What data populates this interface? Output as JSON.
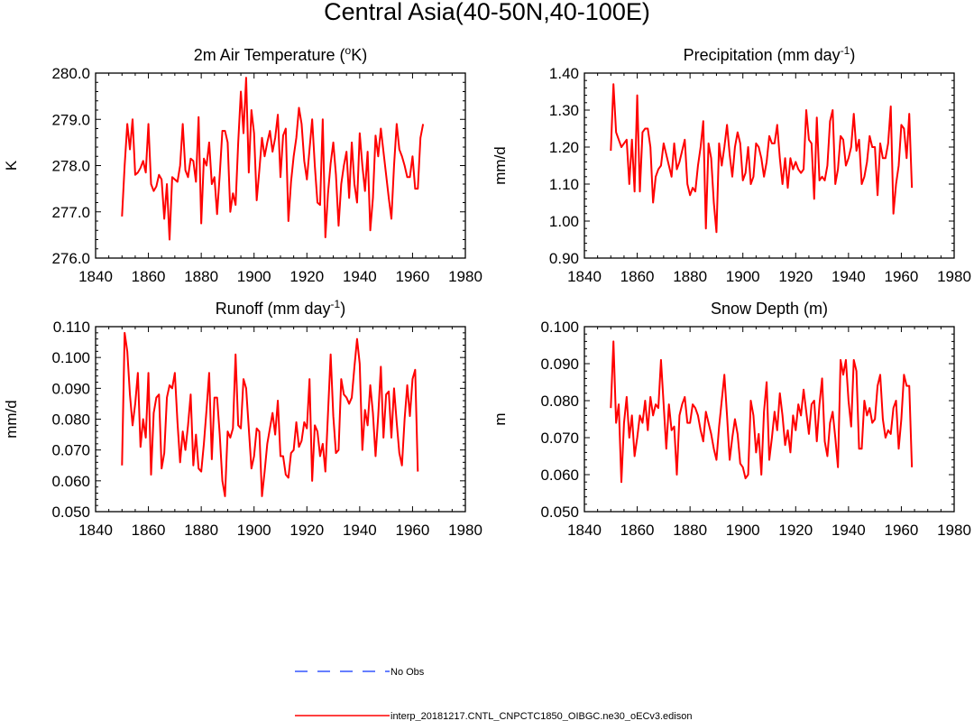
{
  "figure": {
    "title": "Central Asia(40-50N,40-100E)"
  },
  "chart_data": [
    {
      "id": "temperature",
      "type": "line",
      "title": "2m Air Temperature (",
      "title_sup": "o",
      "title_post": "K)",
      "ylabel": "K",
      "xlim": [
        1840,
        1980
      ],
      "ylim": [
        276.0,
        280.0
      ],
      "xticks": [
        1840,
        1860,
        1880,
        1900,
        1920,
        1940,
        1960,
        1980
      ],
      "yticks": [
        "276.0",
        "277.0",
        "278.0",
        "279.0",
        "280.0"
      ],
      "x_start": 1850,
      "series": [
        {
          "name": "interp_20181217.CNTL_CNPCTC1850_OIBGC.ne30_oECv3.edison",
          "color": "#ff0000",
          "values": [
            276.9,
            278.0,
            278.9,
            278.35,
            279.0,
            277.8,
            277.85,
            277.95,
            278.1,
            277.85,
            278.9,
            277.6,
            277.45,
            277.55,
            277.8,
            277.7,
            276.85,
            277.6,
            276.4,
            277.75,
            277.7,
            277.65,
            278.0,
            278.9,
            277.9,
            277.75,
            278.15,
            278.1,
            277.65,
            279.05,
            276.75,
            278.15,
            278.0,
            278.5,
            277.6,
            277.75,
            276.95,
            277.8,
            278.75,
            278.75,
            278.5,
            277.0,
            277.4,
            277.15,
            278.5,
            279.6,
            278.7,
            279.9,
            277.85,
            279.2,
            278.7,
            277.25,
            277.9,
            278.6,
            278.2,
            278.5,
            278.75,
            278.3,
            278.6,
            279.1,
            277.75,
            278.65,
            278.8,
            276.8,
            277.65,
            278.2,
            278.6,
            279.25,
            278.9,
            278.1,
            277.7,
            278.35,
            279.0,
            278.0,
            277.2,
            277.15,
            279.0,
            276.45,
            277.4,
            278.05,
            278.5,
            277.8,
            276.7,
            277.6,
            278.0,
            278.3,
            277.3,
            278.5,
            277.6,
            277.2,
            278.7,
            278.0,
            277.45,
            278.3,
            276.6,
            277.3,
            278.65,
            278.2,
            278.8,
            278.3,
            277.8,
            277.3,
            276.85,
            278.0,
            278.9,
            278.35,
            278.2,
            278.0,
            277.75,
            277.75,
            278.2,
            277.5,
            277.5,
            278.6,
            278.9
          ]
        }
      ]
    },
    {
      "id": "precipitation",
      "type": "line",
      "title": "Precipitation (mm day",
      "title_sup": "-1",
      "title_post": ")",
      "ylabel": "mm/d",
      "xlim": [
        1840,
        1980
      ],
      "ylim": [
        0.9,
        1.4
      ],
      "xticks": [
        1840,
        1860,
        1880,
        1900,
        1920,
        1940,
        1960,
        1980
      ],
      "yticks": [
        "0.90",
        "1.00",
        "1.10",
        "1.20",
        "1.30",
        "1.40"
      ],
      "x_start": 1850,
      "series": [
        {
          "name": "interp_20181217.CNTL_CNPCTC1850_OIBGC.ne30_oECv3.edison",
          "color": "#ff0000",
          "values": [
            1.19,
            1.37,
            1.24,
            1.22,
            1.2,
            1.21,
            1.22,
            1.1,
            1.22,
            1.08,
            1.34,
            1.08,
            1.24,
            1.25,
            1.25,
            1.2,
            1.05,
            1.12,
            1.14,
            1.15,
            1.21,
            1.18,
            1.15,
            1.12,
            1.21,
            1.14,
            1.16,
            1.19,
            1.22,
            1.1,
            1.07,
            1.09,
            1.08,
            1.15,
            1.2,
            1.27,
            0.98,
            1.21,
            1.17,
            1.05,
            0.97,
            1.21,
            1.15,
            1.2,
            1.26,
            1.18,
            1.12,
            1.2,
            1.24,
            1.21,
            1.11,
            1.13,
            1.2,
            1.1,
            1.12,
            1.21,
            1.2,
            1.17,
            1.12,
            1.16,
            1.23,
            1.21,
            1.21,
            1.26,
            1.17,
            1.1,
            1.17,
            1.09,
            1.17,
            1.14,
            1.16,
            1.14,
            1.13,
            1.14,
            1.3,
            1.22,
            1.21,
            1.06,
            1.28,
            1.11,
            1.12,
            1.11,
            1.15,
            1.27,
            1.3,
            1.1,
            1.14,
            1.23,
            1.22,
            1.15,
            1.17,
            1.2,
            1.29,
            1.19,
            1.22,
            1.1,
            1.12,
            1.16,
            1.23,
            1.2,
            1.2,
            1.07,
            1.21,
            1.17,
            1.17,
            1.21,
            1.31,
            1.02,
            1.1,
            1.15,
            1.26,
            1.25,
            1.17,
            1.29,
            1.09
          ]
        }
      ]
    },
    {
      "id": "runoff",
      "type": "line",
      "title": "Runoff (mm day",
      "title_sup": "-1",
      "title_post": ")",
      "ylabel": "mm/d",
      "xlim": [
        1840,
        1980
      ],
      "ylim": [
        0.05,
        0.11
      ],
      "xticks": [
        1840,
        1860,
        1880,
        1900,
        1920,
        1940,
        1960,
        1980
      ],
      "yticks": [
        "0.050",
        "0.060",
        "0.070",
        "0.080",
        "0.090",
        "0.100",
        "0.110"
      ],
      "x_start": 1850,
      "series": [
        {
          "name": "interp_20181217.CNTL_CNPCTC1850_OIBGC.ne30_oECv3.edison",
          "color": "#ff0000",
          "values": [
            0.065,
            0.108,
            0.102,
            0.088,
            0.078,
            0.085,
            0.095,
            0.071,
            0.08,
            0.074,
            0.095,
            0.062,
            0.082,
            0.087,
            0.088,
            0.064,
            0.069,
            0.087,
            0.091,
            0.09,
            0.095,
            0.079,
            0.066,
            0.076,
            0.07,
            0.078,
            0.088,
            0.065,
            0.075,
            0.064,
            0.063,
            0.072,
            0.083,
            0.095,
            0.067,
            0.087,
            0.087,
            0.075,
            0.06,
            0.055,
            0.076,
            0.074,
            0.077,
            0.101,
            0.078,
            0.077,
            0.093,
            0.09,
            0.077,
            0.064,
            0.068,
            0.077,
            0.076,
            0.055,
            0.063,
            0.072,
            0.077,
            0.082,
            0.075,
            0.086,
            0.068,
            0.068,
            0.062,
            0.061,
            0.069,
            0.07,
            0.079,
            0.071,
            0.073,
            0.079,
            0.077,
            0.093,
            0.06,
            0.078,
            0.076,
            0.068,
            0.072,
            0.063,
            0.082,
            0.101,
            0.081,
            0.069,
            0.07,
            0.093,
            0.088,
            0.087,
            0.085,
            0.087,
            0.097,
            0.106,
            0.098,
            0.07,
            0.083,
            0.078,
            0.091,
            0.082,
            0.068,
            0.081,
            0.097,
            0.074,
            0.088,
            0.089,
            0.074,
            0.09,
            0.079,
            0.069,
            0.065,
            0.08,
            0.091,
            0.081,
            0.093,
            0.096,
            0.063
          ]
        }
      ]
    },
    {
      "id": "snow-depth",
      "type": "line",
      "title": "Snow Depth (m)",
      "title_sup": "",
      "title_post": "",
      "ylabel": "m",
      "xlim": [
        1840,
        1980
      ],
      "ylim": [
        0.05,
        0.1
      ],
      "xticks": [
        1840,
        1860,
        1880,
        1900,
        1920,
        1940,
        1960,
        1980
      ],
      "yticks": [
        "0.050",
        "0.060",
        "0.070",
        "0.080",
        "0.090",
        "0.100"
      ],
      "x_start": 1850,
      "series": [
        {
          "name": "interp_20181217.CNTL_CNPCTC1850_OIBGC.ne30_oECv3.edison",
          "color": "#ff0000",
          "values": [
            0.078,
            0.096,
            0.074,
            0.079,
            0.058,
            0.074,
            0.081,
            0.07,
            0.076,
            0.065,
            0.07,
            0.076,
            0.074,
            0.08,
            0.072,
            0.081,
            0.076,
            0.079,
            0.078,
            0.091,
            0.079,
            0.067,
            0.079,
            0.072,
            0.073,
            0.06,
            0.076,
            0.079,
            0.081,
            0.074,
            0.074,
            0.079,
            0.078,
            0.076,
            0.072,
            0.069,
            0.077,
            0.074,
            0.071,
            0.067,
            0.064,
            0.073,
            0.08,
            0.087,
            0.076,
            0.064,
            0.07,
            0.075,
            0.071,
            0.063,
            0.062,
            0.059,
            0.06,
            0.08,
            0.076,
            0.066,
            0.071,
            0.06,
            0.077,
            0.085,
            0.064,
            0.07,
            0.077,
            0.072,
            0.082,
            0.076,
            0.068,
            0.072,
            0.066,
            0.076,
            0.072,
            0.079,
            0.076,
            0.083,
            0.077,
            0.071,
            0.079,
            0.08,
            0.069,
            0.079,
            0.086,
            0.069,
            0.065,
            0.074,
            0.077,
            0.07,
            0.062,
            0.091,
            0.087,
            0.091,
            0.08,
            0.073,
            0.091,
            0.088,
            0.067,
            0.067,
            0.08,
            0.076,
            0.078,
            0.074,
            0.075,
            0.084,
            0.087,
            0.075,
            0.07,
            0.072,
            0.071,
            0.078,
            0.08,
            0.067,
            0.075,
            0.087,
            0.084,
            0.084,
            0.062
          ]
        }
      ]
    }
  ],
  "legend": {
    "items": [
      {
        "label": "No Obs",
        "color": "#3355ff",
        "style": "dashed"
      },
      {
        "label": "interp_20181217.CNTL_CNPCTC1850_OIBGC.ne30_oECv3.edison",
        "color": "#ff0000",
        "style": "solid"
      }
    ]
  }
}
